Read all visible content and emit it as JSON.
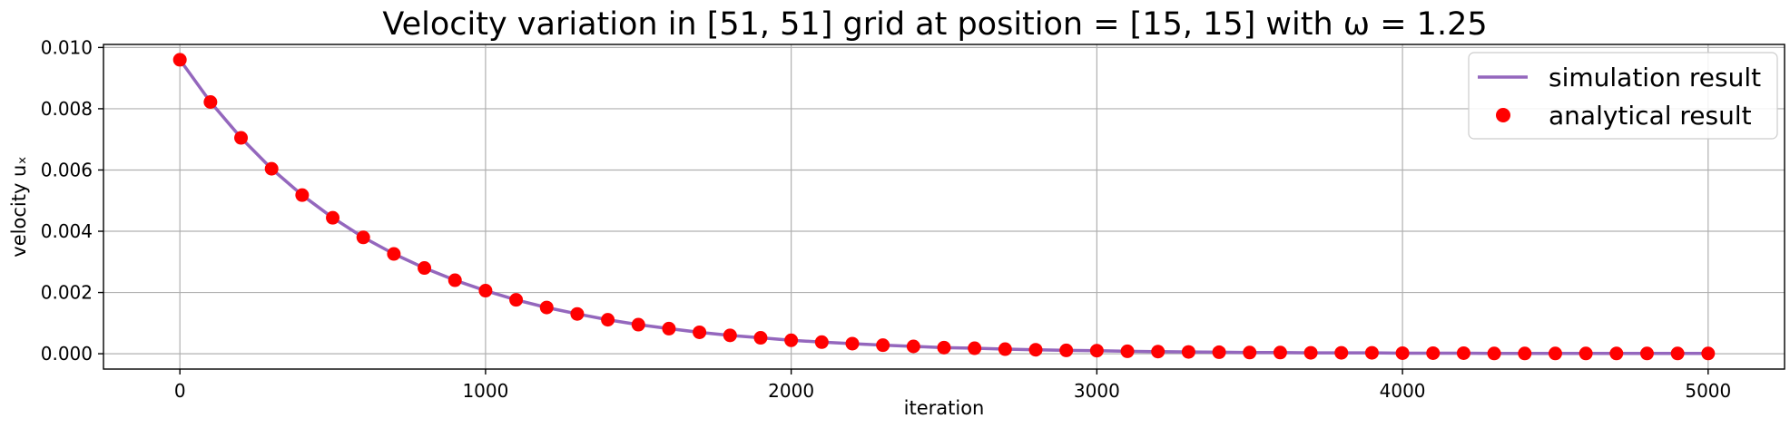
{
  "chart_data": {
    "type": "line",
    "title": "Velocity variation in [51, 51] grid at position = [15, 15] with ω = 1.25",
    "xlabel": "iteration",
    "ylabel": "velocity uₓ",
    "xlim": [
      -250,
      5250
    ],
    "ylim": [
      -0.0005,
      0.0101
    ],
    "xticks": [
      0,
      1000,
      2000,
      3000,
      4000,
      5000
    ],
    "yticks": [
      0.0,
      0.002,
      0.004,
      0.006,
      0.008,
      0.01
    ],
    "xtick_labels": [
      "0",
      "1000",
      "2000",
      "3000",
      "4000",
      "5000"
    ],
    "ytick_labels": [
      "0.000",
      "0.002",
      "0.004",
      "0.006",
      "0.008",
      "0.010"
    ],
    "grid": true,
    "legend_position": "top-right",
    "series": [
      {
        "name": "simulation result",
        "kind": "line",
        "color": "#9467bd",
        "x": [
          0,
          100,
          200,
          300,
          400,
          500,
          600,
          700,
          800,
          900,
          1000,
          1100,
          1200,
          1300,
          1400,
          1500,
          1600,
          1700,
          1800,
          1900,
          2000,
          2100,
          2200,
          2300,
          2400,
          2500,
          2600,
          2700,
          2800,
          2900,
          3000,
          3100,
          3200,
          3300,
          3400,
          3500,
          3600,
          3700,
          3800,
          3900,
          4000,
          4100,
          4200,
          4300,
          4400,
          4500,
          4600,
          4700,
          4800,
          4900,
          5000
        ],
        "y": [
          0.0096,
          0.00822,
          0.00705,
          0.00604,
          0.00518,
          0.00444,
          0.0038,
          0.00326,
          0.0028,
          0.0024,
          0.00206,
          0.00176,
          0.00151,
          0.0013,
          0.00111,
          0.00095,
          0.00082,
          0.0007,
          0.0006,
          0.00052,
          0.00044,
          0.00038,
          0.00033,
          0.00028,
          0.00024,
          0.0002,
          0.00018,
          0.00015,
          0.00013,
          0.00011,
          0.0001,
          8e-05,
          7e-05,
          6e-05,
          5e-05,
          4e-05,
          4e-05,
          3e-05,
          3e-05,
          3e-05,
          2e-05,
          2e-05,
          2e-05,
          1e-05,
          1e-05,
          1e-05,
          1e-05,
          1e-05,
          1e-05,
          1e-05,
          1e-05
        ]
      },
      {
        "name": "analytical result",
        "kind": "scatter",
        "color": "#ff0000",
        "x": [
          0,
          100,
          200,
          300,
          400,
          500,
          600,
          700,
          800,
          900,
          1000,
          1100,
          1200,
          1300,
          1400,
          1500,
          1600,
          1700,
          1800,
          1900,
          2000,
          2100,
          2200,
          2300,
          2400,
          2500,
          2600,
          2700,
          2800,
          2900,
          3000,
          3100,
          3200,
          3300,
          3400,
          3500,
          3600,
          3700,
          3800,
          3900,
          4000,
          4100,
          4200,
          4300,
          4400,
          4500,
          4600,
          4700,
          4800,
          4900,
          5000
        ],
        "y": [
          0.0096,
          0.00822,
          0.00705,
          0.00604,
          0.00518,
          0.00444,
          0.0038,
          0.00326,
          0.0028,
          0.0024,
          0.00206,
          0.00176,
          0.00151,
          0.0013,
          0.00111,
          0.00095,
          0.00082,
          0.0007,
          0.0006,
          0.00052,
          0.00044,
          0.00038,
          0.00033,
          0.00028,
          0.00024,
          0.0002,
          0.00018,
          0.00015,
          0.00013,
          0.00011,
          0.0001,
          8e-05,
          7e-05,
          6e-05,
          5e-05,
          4e-05,
          4e-05,
          3e-05,
          3e-05,
          3e-05,
          2e-05,
          2e-05,
          2e-05,
          1e-05,
          1e-05,
          1e-05,
          1e-05,
          1e-05,
          1e-05,
          1e-05,
          1e-05
        ]
      }
    ]
  }
}
